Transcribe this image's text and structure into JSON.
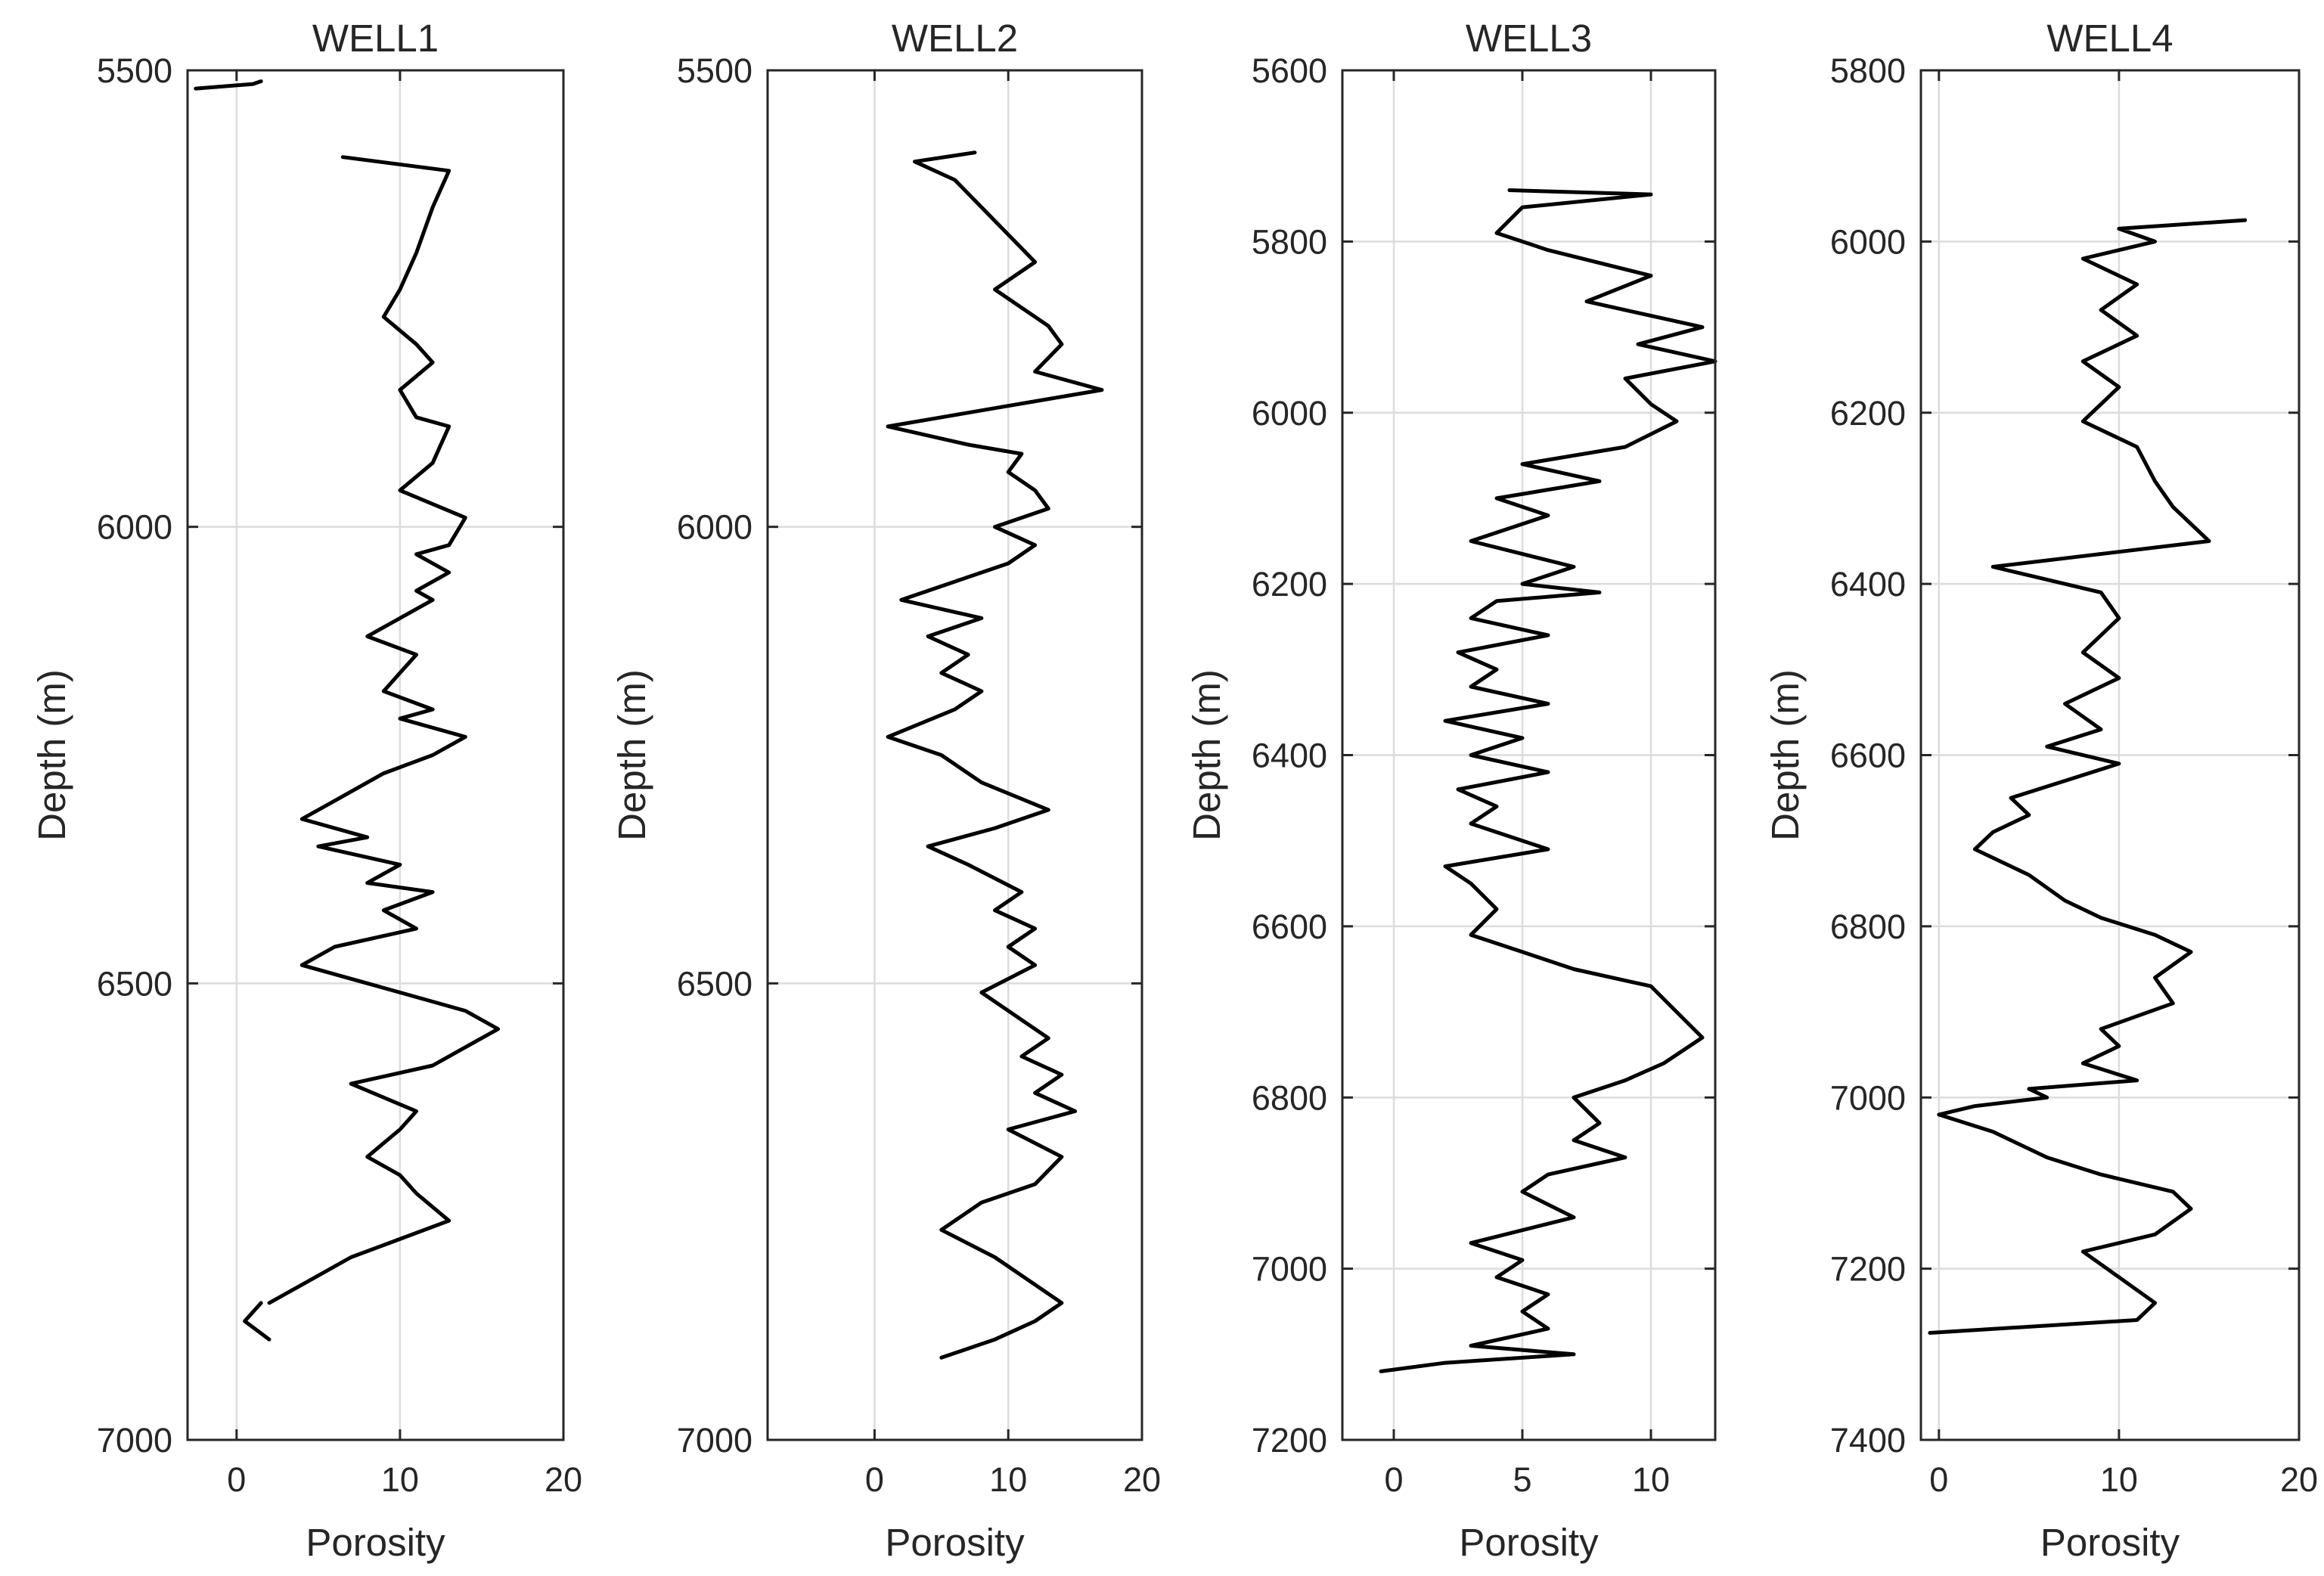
{
  "chart_data": [
    {
      "type": "line",
      "title": "WELL1",
      "xlabel": "Porosity",
      "ylabel": "Depth (m)",
      "xlim": [
        -3,
        20
      ],
      "ylim": [
        5500,
        7000
      ],
      "y_reversed": true,
      "grid": true,
      "xticks": [
        0,
        10,
        20
      ],
      "yticks": [
        5500,
        6000,
        6500,
        7000
      ],
      "series": [
        {
          "x": [
            -2.5,
            1.0,
            1.5
          ],
          "y": [
            5520,
            5515,
            5512
          ]
        },
        {
          "x": [
            6.5,
            13,
            12,
            11,
            10,
            9,
            11,
            12,
            10,
            11,
            13,
            12,
            10,
            14,
            13,
            11,
            13,
            11,
            12,
            10,
            8,
            11,
            10,
            9,
            12,
            10,
            14,
            12,
            9,
            6,
            4,
            8,
            5,
            10,
            8,
            12,
            9,
            11,
            6,
            4,
            8,
            10,
            14,
            16,
            14,
            12,
            7,
            11,
            10,
            8,
            10,
            11,
            13,
            10,
            7,
            4,
            2
          ],
          "y": [
            5595,
            5610,
            5650,
            5700,
            5740,
            5770,
            5800,
            5820,
            5850,
            5880,
            5890,
            5930,
            5960,
            5990,
            6020,
            6030,
            6050,
            6070,
            6080,
            6100,
            6120,
            6140,
            6160,
            6180,
            6200,
            6210,
            6230,
            6250,
            6270,
            6300,
            6320,
            6340,
            6350,
            6370,
            6390,
            6400,
            6420,
            6440,
            6460,
            6480,
            6500,
            6510,
            6530,
            6550,
            6570,
            6590,
            6610,
            6640,
            6660,
            6690,
            6710,
            6730,
            6760,
            6780,
            6800,
            6830,
            6850
          ]
        },
        {
          "x": [
            1.5,
            0.5,
            2.0
          ],
          "y": [
            6850,
            6870,
            6890
          ]
        }
      ]
    },
    {
      "type": "line",
      "title": "WELL2",
      "xlabel": "Porosity",
      "ylabel": "Depth (m)",
      "xlim": [
        -8,
        20
      ],
      "ylim": [
        5500,
        7000
      ],
      "y_reversed": true,
      "grid": true,
      "xticks": [
        0,
        10,
        20
      ],
      "yticks": [
        5500,
        6000,
        6500,
        7000
      ],
      "series": [
        {
          "x": [
            7.5,
            3,
            6,
            8,
            10,
            12,
            9,
            11,
            13,
            14,
            12,
            17,
            13,
            9,
            5,
            1,
            7,
            11,
            10,
            12,
            13,
            9,
            12,
            10,
            6,
            2,
            8,
            4,
            7,
            5,
            8,
            6,
            1,
            5,
            8,
            13,
            9,
            4,
            7,
            11,
            9,
            12,
            10,
            12,
            8,
            10,
            13,
            11,
            14,
            12,
            15,
            10,
            14,
            12,
            8,
            5,
            9,
            11,
            14,
            12,
            9,
            5
          ],
          "y": [
            5590,
            5600,
            5620,
            5650,
            5680,
            5710,
            5740,
            5760,
            5780,
            5800,
            5830,
            5850,
            5860,
            5870,
            5880,
            5890,
            5910,
            5920,
            5940,
            5960,
            5980,
            6000,
            6020,
            6040,
            6060,
            6080,
            6100,
            6120,
            6140,
            6160,
            6180,
            6200,
            6230,
            6250,
            6280,
            6310,
            6330,
            6350,
            6370,
            6400,
            6420,
            6440,
            6460,
            6480,
            6510,
            6530,
            6560,
            6580,
            6600,
            6620,
            6640,
            6660,
            6690,
            6720,
            6740,
            6770,
            6800,
            6820,
            6850,
            6870,
            6890,
            6910
          ]
        }
      ]
    },
    {
      "type": "line",
      "title": "WELL3",
      "xlabel": "Porosity",
      "ylabel": "Depth (m)",
      "xlim": [
        -2,
        12.5
      ],
      "ylim": [
        5600,
        7200
      ],
      "y_reversed": true,
      "grid": true,
      "xticks": [
        0,
        5,
        10
      ],
      "yticks": [
        5600,
        5800,
        6000,
        6200,
        6400,
        6600,
        6800,
        7000,
        7200
      ],
      "series": [
        {
          "x": [
            4.5,
            10,
            5,
            4,
            6,
            10,
            7.5,
            12,
            9.5,
            12.5,
            9,
            10,
            11,
            9,
            5,
            8,
            4,
            6,
            3,
            7,
            5,
            8,
            4,
            3,
            6,
            2.5,
            4,
            3,
            6,
            2,
            5,
            3,
            6,
            2.5,
            4,
            3,
            6,
            2,
            3,
            4,
            3,
            5,
            7,
            10,
            11,
            12,
            10.5,
            9,
            7,
            8,
            7,
            9,
            6,
            5,
            7,
            3,
            5,
            4,
            6,
            5,
            6,
            3,
            7,
            2,
            -0.5
          ],
          "y": [
            5740,
            5745,
            5760,
            5790,
            5810,
            5840,
            5870,
            5900,
            5920,
            5940,
            5960,
            5990,
            6010,
            6040,
            6060,
            6080,
            6100,
            6120,
            6150,
            6180,
            6200,
            6210,
            6220,
            6240,
            6260,
            6280,
            6300,
            6320,
            6340,
            6360,
            6380,
            6400,
            6420,
            6440,
            6460,
            6480,
            6510,
            6530,
            6550,
            6580,
            6610,
            6630,
            6650,
            6670,
            6700,
            6730,
            6760,
            6780,
            6800,
            6830,
            6850,
            6870,
            6890,
            6910,
            6940,
            6970,
            6990,
            7010,
            7030,
            7050,
            7070,
            7090,
            7100,
            7110,
            7120
          ]
        }
      ]
    },
    {
      "type": "line",
      "title": "WELL4",
      "xlabel": "Porosity",
      "ylabel": "Depth (m)",
      "xlim": [
        -1,
        20
      ],
      "ylim": [
        5800,
        7400
      ],
      "y_reversed": true,
      "grid": true,
      "xticks": [
        0,
        10,
        20
      ],
      "yticks": [
        5800,
        6000,
        6200,
        6400,
        6600,
        6800,
        7000,
        7200,
        7400
      ],
      "series": [
        {
          "x": [
            17,
            10,
            12,
            8,
            11,
            9,
            11,
            8,
            10,
            8,
            11,
            12,
            13,
            15,
            3,
            9,
            10,
            8,
            10,
            7,
            9,
            6,
            10,
            7,
            4,
            5,
            3,
            2,
            5,
            7,
            9,
            12,
            14,
            12,
            13,
            9,
            10,
            8,
            11,
            5,
            6,
            2,
            0,
            3,
            6,
            9,
            13,
            14,
            12,
            8,
            10,
            12,
            11,
            -0.5
          ],
          "y": [
            5975,
            5985,
            6000,
            6020,
            6050,
            6080,
            6110,
            6140,
            6170,
            6210,
            6240,
            6280,
            6310,
            6350,
            6380,
            6410,
            6440,
            6480,
            6510,
            6540,
            6570,
            6590,
            6610,
            6630,
            6650,
            6670,
            6690,
            6710,
            6740,
            6770,
            6790,
            6810,
            6830,
            6860,
            6890,
            6920,
            6940,
            6960,
            6980,
            6990,
            7000,
            7010,
            7020,
            7040,
            7070,
            7090,
            7110,
            7130,
            7160,
            7180,
            7210,
            7240,
            7260,
            7275
          ]
        }
      ]
    }
  ]
}
